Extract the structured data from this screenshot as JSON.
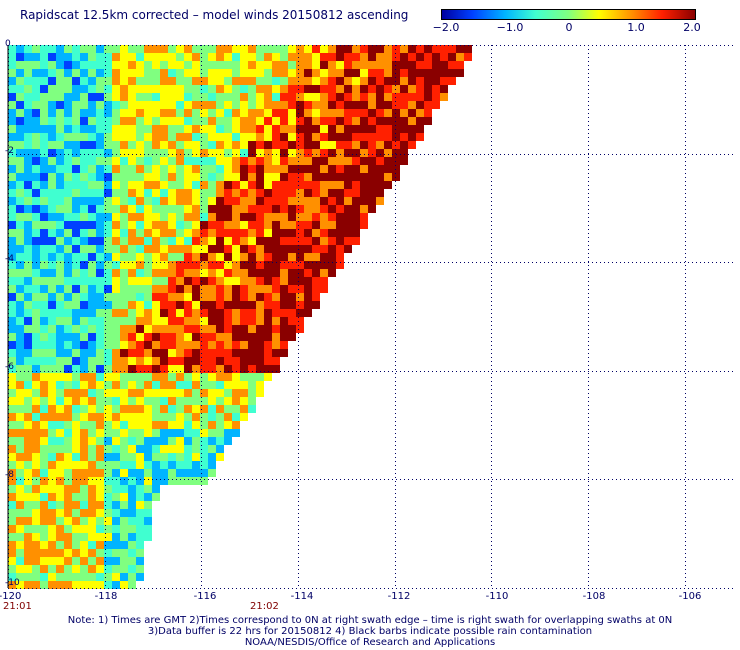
{
  "title": "Rapidscat 12.5km corrected – model winds 20150812 ascending",
  "colorbar": {
    "labels": [
      "−2.0",
      "−1.0",
      "0",
      "1.0",
      "2.0"
    ],
    "values": [
      -2.0,
      -1.0,
      0,
      1.0,
      2.0
    ],
    "min": -2.0,
    "max": 2.0
  },
  "axes": {
    "x_ticks": [
      "-120",
      "-118",
      "-116",
      "-114",
      "-112",
      "-110",
      "-108",
      "-106"
    ],
    "x_values": [
      -120,
      -118,
      -116,
      -114,
      -112,
      -110,
      -108,
      -106
    ],
    "y_ticks": [
      "0",
      "-2",
      "-4",
      "-6",
      "-8",
      "-10"
    ],
    "y_values": [
      0,
      -2,
      -4,
      -6,
      -8,
      -10
    ],
    "lon_range": [
      -120,
      -105
    ],
    "lat_range": [
      -10,
      0
    ],
    "grid": true
  },
  "times": {
    "left": "21:01",
    "mid": "21:02"
  },
  "notes": [
    "Note: 1) Times are GMT 2)Times correspond to 0N at right swath edge – time is right swath for overlapping swaths at 0N",
    "3)Data buffer is 22 hrs for 20150812 4) Black barbs indicate possible rain contamination",
    "NOAA/NESDIS/Office of Research and Applications"
  ],
  "colors": {
    "text": "#000066",
    "time": "#800000",
    "scale": [
      "#0000a0",
      "#0040ff",
      "#00b4ff",
      "#40ffd0",
      "#80ff80",
      "#ffff00",
      "#ff9000",
      "#ff2000",
      "#8a0000"
    ]
  }
}
